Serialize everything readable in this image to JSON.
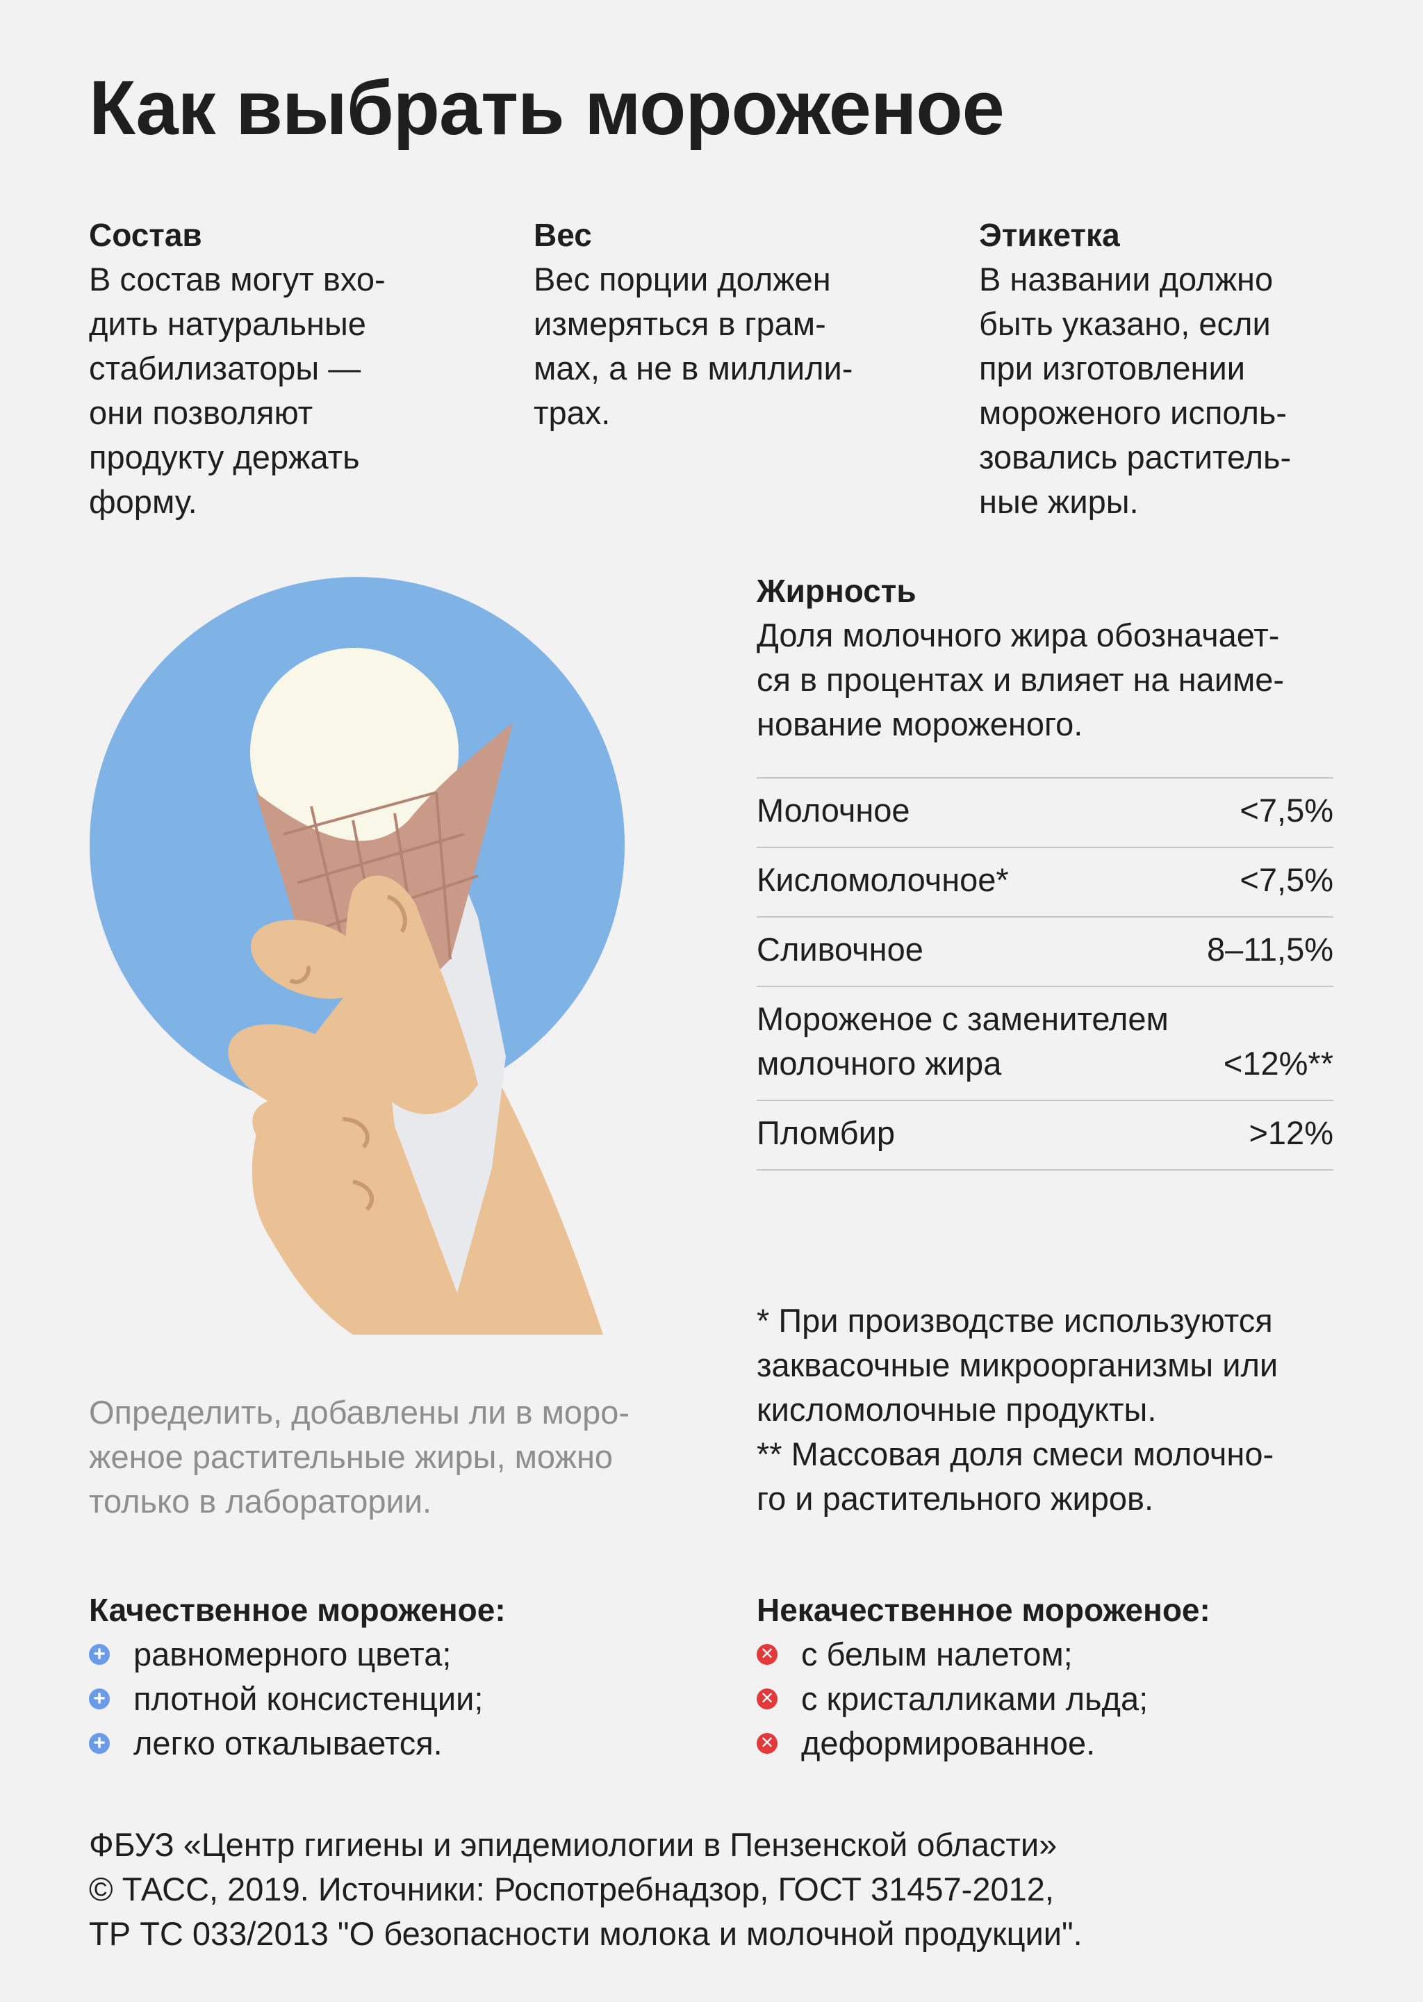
{
  "title": "Как выбрать мороженое",
  "columns": [
    {
      "heading": "Состав",
      "text": "В состав могут вхо-\nдить натуральные\nстабилизаторы —\nони позволяют\nпродукту держать\nформу."
    },
    {
      "heading": "Вес",
      "text": "Вес порции должен\nизмеряться в грам-\nмах, а не в миллили-\nтрах."
    },
    {
      "heading": "Этикетка",
      "text": "В названии должно\nбыть указано, если\nпри изготовлении\nмороженого исполь-\nзовались раститель-\nные жиры."
    }
  ],
  "illustration_note": "Определить, добавлены ли в моро-\nженое растительные жиры, можно\nтолько в лаборатории.",
  "fat": {
    "heading": "Жирность",
    "text": "Доля молочного жира обозначает-\nся в процентах и влияет на наиме-\nнование мороженого.",
    "rows": [
      {
        "name": "Молочное",
        "value": "<7,5%"
      },
      {
        "name": "Кисломолочное*",
        "value": "<7,5%"
      },
      {
        "name": "Сливочное",
        "value": "8–11,5%"
      },
      {
        "name": "Мороженое с заменителем\nмолочного жира",
        "value": "<12%**"
      },
      {
        "name": "Пломбир",
        "value": ">12%"
      }
    ],
    "footnotes": "* При производстве используются\nзаквасочные микроорганизмы или\nкисломолочные продукты.\n** Массовая доля смеси молочно-\nго и растительного жиров."
  },
  "good": {
    "heading": "Качественное мороженое:",
    "items": [
      "равномерного цвета;",
      "плотной консистенции;",
      "легко откалывается."
    ]
  },
  "bad": {
    "heading": "Некачественное мороженое:",
    "items": [
      "с белым налетом;",
      "с кристалликами льда;",
      "деформированное."
    ]
  },
  "footer": "ФБУЗ «Центр гигиены и эпидемиологии в Пензенской области»\n© ТАСС, 2019. Источники: Роспотребнадзор, ГОСТ 31457-2012,\nТР ТС 033/2013 \"О безопасности молока и молочной продукции\".",
  "colors": {
    "background": "#f2f2f2",
    "circle": "#7fb2e5",
    "plus": "#6b9be6",
    "cross": "#e23a3a",
    "muted_text": "#8e8e8e"
  },
  "icons": {
    "good_bullet": "plus-circle-icon",
    "bad_bullet": "cross-circle-icon",
    "illustration": "ice-cream-cone-in-hand"
  }
}
